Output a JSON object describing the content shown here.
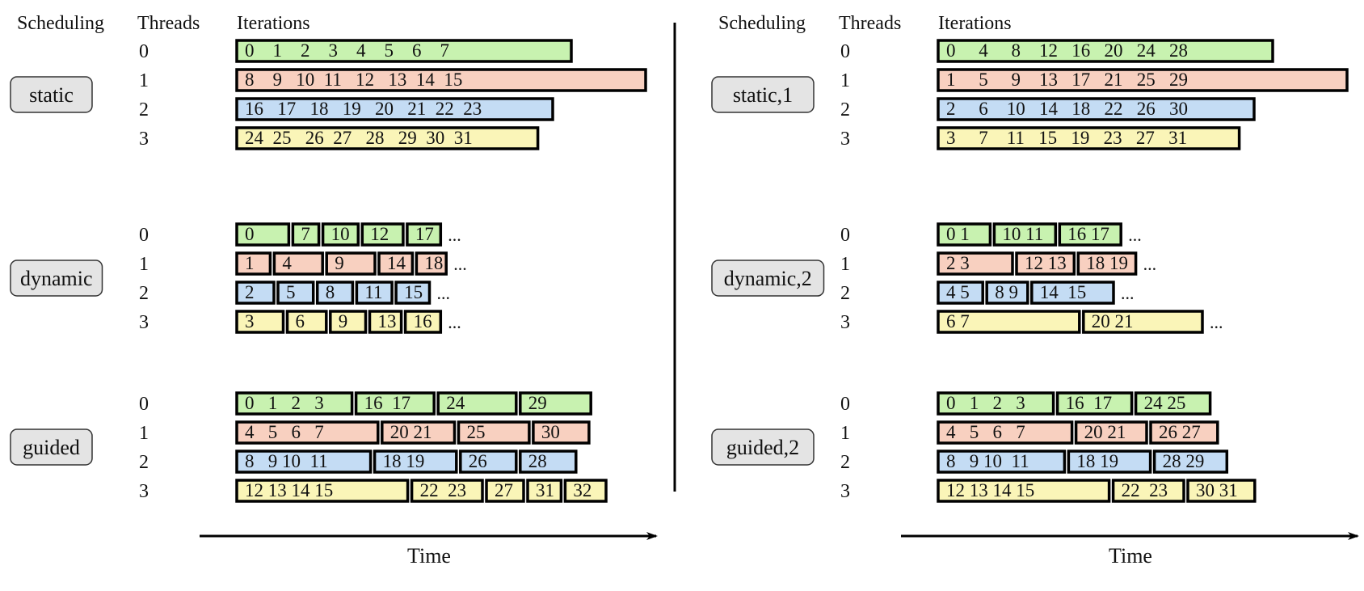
{
  "colors": {
    "thread0": "#c8f2b0",
    "thread1": "#f8d0c0",
    "thread2": "#c4dcf4",
    "thread3": "#faf5b8",
    "label_box": "#e4e4e4",
    "stroke": "#000000"
  },
  "headers": {
    "scheduling": "Scheduling",
    "threads": "Threads",
    "iterations": "Iterations"
  },
  "threads": [
    "0",
    "1",
    "2",
    "3"
  ],
  "ellipsis": "...",
  "time_label": "Time",
  "panels": [
    {
      "groups": [
        {
          "label": "static",
          "rows": [
            {
              "blocks": [
                {
                  "text": "0    1    2    3    4    5    6    7",
                  "span": 9.0
                }
              ],
              "ellipsis": false
            },
            {
              "blocks": [
                {
                  "text": "8    9   10  11   12   13  14  15",
                  "span": 11.0
                }
              ],
              "ellipsis": false
            },
            {
              "blocks": [
                {
                  "text": "16   17   18   19   20   21  22  23",
                  "span": 8.5
                }
              ],
              "ellipsis": false
            },
            {
              "blocks": [
                {
                  "text": "24  25   26  27   28   29  30  31",
                  "span": 8.1
                }
              ],
              "ellipsis": false
            }
          ]
        },
        {
          "label": "dynamic",
          "rows": [
            {
              "blocks": [
                {
                  "text": "0",
                  "span": 1.4
                },
                {
                  "text": "7",
                  "span": 0.7
                },
                {
                  "text": "10",
                  "span": 0.95
                },
                {
                  "text": "12",
                  "span": 1.1
                },
                {
                  "text": "17",
                  "span": 0.9
                }
              ],
              "ellipsis": true
            },
            {
              "blocks": [
                {
                  "text": "1",
                  "span": 0.9
                },
                {
                  "text": "4",
                  "span": 1.3
                },
                {
                  "text": "9",
                  "span": 1.3
                },
                {
                  "text": "14",
                  "span": 0.9
                },
                {
                  "text": "18",
                  "span": 0.8
                }
              ],
              "ellipsis": true
            },
            {
              "blocks": [
                {
                  "text": "2",
                  "span": 1.0
                },
                {
                  "text": "5",
                  "span": 0.95
                },
                {
                  "text": "8",
                  "span": 0.95
                },
                {
                  "text": "11",
                  "span": 0.95
                },
                {
                  "text": "15",
                  "span": 0.9
                }
              ],
              "ellipsis": true
            },
            {
              "blocks": [
                {
                  "text": "3",
                  "span": 1.25
                },
                {
                  "text": "6",
                  "span": 1.05
                },
                {
                  "text": "9",
                  "span": 0.95
                },
                {
                  "text": "13",
                  "span": 0.85
                },
                {
                  "text": "16",
                  "span": 0.95
                }
              ],
              "ellipsis": true
            }
          ]
        },
        {
          "label": "guided",
          "rows": [
            {
              "blocks": [
                {
                  "text": "0   1   2   3",
                  "span": 3.1
                },
                {
                  "text": "16  17",
                  "span": 2.1
                },
                {
                  "text": "24",
                  "span": 2.1
                },
                {
                  "text": "29",
                  "span": 1.9
                }
              ],
              "ellipsis": false
            },
            {
              "blocks": [
                {
                  "text": "4   5   6   7",
                  "span": 3.8
                },
                {
                  "text": "20 21",
                  "span": 1.95
                },
                {
                  "text": "25",
                  "span": 1.9
                },
                {
                  "text": "30",
                  "span": 1.5
                }
              ],
              "ellipsis": false
            },
            {
              "blocks": [
                {
                  "text": "8   9 10  11",
                  "span": 3.6
                },
                {
                  "text": "18 19",
                  "span": 2.2
                },
                {
                  "text": "26",
                  "span": 1.5
                },
                {
                  "text": "28",
                  "span": 1.5
                }
              ],
              "ellipsis": false
            },
            {
              "blocks": [
                {
                  "text": "12 13 14 15",
                  "span": 4.6
                },
                {
                  "text": "22  23",
                  "span": 1.9
                },
                {
                  "text": "27",
                  "span": 1.0
                },
                {
                  "text": "31",
                  "span": 0.9
                },
                {
                  "text": "32",
                  "span": 1.1
                }
              ],
              "ellipsis": false
            }
          ]
        }
      ]
    },
    {
      "groups": [
        {
          "label": "static,1",
          "rows": [
            {
              "blocks": [
                {
                  "text": "0     4     8    12   16   20   24   28",
                  "span": 9.0
                }
              ],
              "ellipsis": false
            },
            {
              "blocks": [
                {
                  "text": "1     5     9    13   17   21   25   29",
                  "span": 11.0
                }
              ],
              "ellipsis": false
            },
            {
              "blocks": [
                {
                  "text": "2     6    10   14   18   22   26   30",
                  "span": 8.5
                }
              ],
              "ellipsis": false
            },
            {
              "blocks": [
                {
                  "text": "3     7    11   15   19   23   27   31",
                  "span": 8.1
                }
              ],
              "ellipsis": false
            }
          ]
        },
        {
          "label": "dynamic,2",
          "rows": [
            {
              "blocks": [
                {
                  "text": "0 1",
                  "span": 1.4
                },
                {
                  "text": "10 11",
                  "span": 1.65
                },
                {
                  "text": "16 17",
                  "span": 1.65
                }
              ],
              "ellipsis": true
            },
            {
              "blocks": [
                {
                  "text": "2 3",
                  "span": 2.0
                },
                {
                  "text": "12 13",
                  "span": 1.55
                },
                {
                  "text": "18 19",
                  "span": 1.55
                }
              ],
              "ellipsis": true
            },
            {
              "blocks": [
                {
                  "text": "4 5",
                  "span": 1.2
                },
                {
                  "text": "8 9",
                  "span": 1.1
                },
                {
                  "text": "14  15",
                  "span": 2.2
                }
              ],
              "ellipsis": true
            },
            {
              "blocks": [
                {
                  "text": "6 7",
                  "span": 3.8
                },
                {
                  "text": "20 21",
                  "span": 3.2
                }
              ],
              "ellipsis": true
            }
          ]
        },
        {
          "label": "guided,2",
          "rows": [
            {
              "blocks": [
                {
                  "text": "0   1   2   3",
                  "span": 3.1
                },
                {
                  "text": "16  17",
                  "span": 2.0
                },
                {
                  "text": "24 25",
                  "span": 2.0
                }
              ],
              "ellipsis": false
            },
            {
              "blocks": [
                {
                  "text": "4   5   6   7",
                  "span": 3.6
                },
                {
                  "text": "20 21",
                  "span": 1.9
                },
                {
                  "text": "26 27",
                  "span": 1.8
                }
              ],
              "ellipsis": false
            },
            {
              "blocks": [
                {
                  "text": "8   9 10  11",
                  "span": 3.4
                },
                {
                  "text": "18 19",
                  "span": 2.2
                },
                {
                  "text": "28 29",
                  "span": 1.95
                }
              ],
              "ellipsis": false
            },
            {
              "blocks": [
                {
                  "text": "12 13 14 15",
                  "span": 4.6
                },
                {
                  "text": "22  23",
                  "span": 1.9
                },
                {
                  "text": "30 31",
                  "span": 1.8
                }
              ],
              "ellipsis": false
            }
          ]
        }
      ]
    }
  ]
}
